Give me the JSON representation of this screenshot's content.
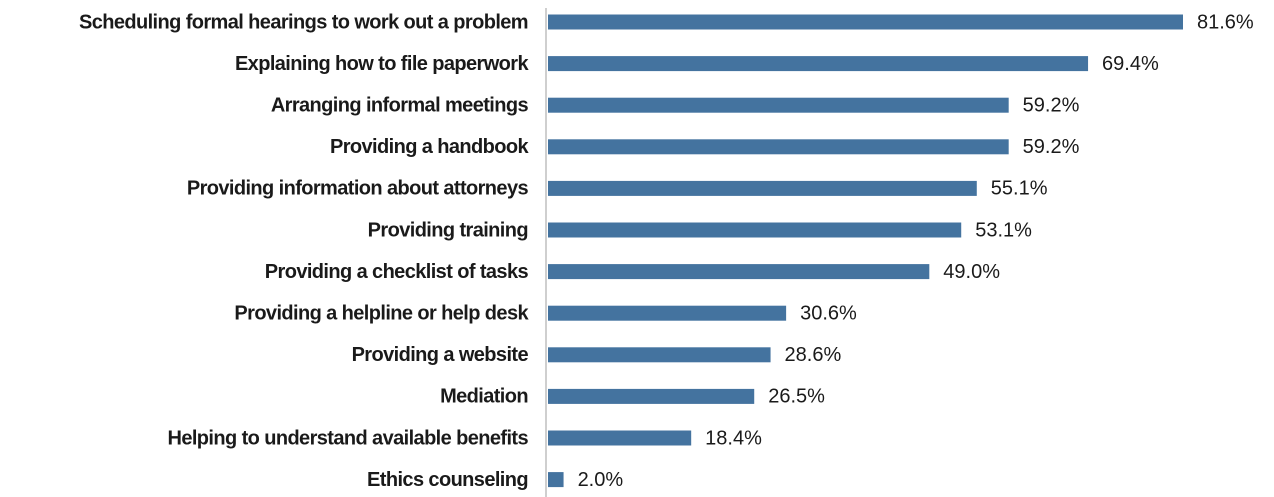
{
  "chart_data": {
    "type": "bar",
    "orientation": "horizontal",
    "categories": [
      "Scheduling formal hearings to work out a problem",
      "Explaining how to file paperwork",
      "Arranging informal meetings",
      "Providing a handbook",
      "Providing information about attorneys",
      "Providing training",
      "Providing a checklist of tasks",
      "Providing a helpline or help desk",
      "Providing a website",
      "Mediation",
      "Helping to understand available benefits",
      "Ethics counseling"
    ],
    "values": [
      81.6,
      69.4,
      59.2,
      59.2,
      55.1,
      53.1,
      49.0,
      30.6,
      28.6,
      26.5,
      18.4,
      2.0
    ],
    "value_labels": [
      "81.6%",
      "69.4%",
      "59.2%",
      "59.2%",
      "55.1%",
      "53.1%",
      "49.0%",
      "30.6%",
      "28.6%",
      "26.5%",
      "18.4%",
      "2.0%"
    ],
    "color": "#44739f"
  }
}
